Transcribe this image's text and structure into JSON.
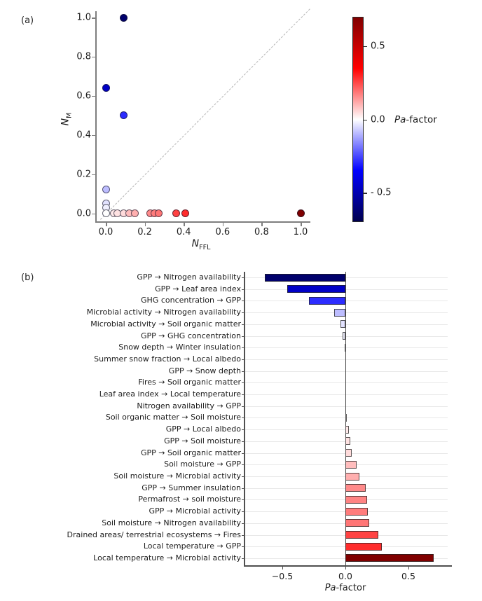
{
  "panel_a": {
    "label": "(a)",
    "ylabel": {
      "main": "N",
      "sub": "M"
    },
    "xlabel": {
      "main": "N",
      "sub": "FFL"
    },
    "x_ticks": [
      {
        "label": "0.0",
        "value": 0.0
      },
      {
        "label": "0.2",
        "value": 0.2
      },
      {
        "label": "0.4",
        "value": 0.4
      },
      {
        "label": "0.6",
        "value": 0.6
      },
      {
        "label": "0.8",
        "value": 0.8
      },
      {
        "label": "1.0",
        "value": 1.0
      }
    ],
    "y_ticks": [
      {
        "label": "0.0",
        "value": 0.0
      },
      {
        "label": "0.2",
        "value": 0.2
      },
      {
        "label": "0.4",
        "value": 0.4
      },
      {
        "label": "0.6",
        "value": 0.6
      },
      {
        "label": "0.8",
        "value": 0.8
      },
      {
        "label": "1.0",
        "value": 1.0
      }
    ]
  },
  "colorbar": {
    "label_italic": "Pa",
    "label_rest": "-factor",
    "vmin": -0.7,
    "vmax": 0.7,
    "ticks": [
      {
        "label": "0.5",
        "value": 0.5
      },
      {
        "label": "0.0",
        "value": 0.0
      },
      {
        "label": "- 0.5",
        "value": -0.5
      }
    ]
  },
  "panel_b": {
    "label": "(b)",
    "xlabel_italic": "Pa",
    "xlabel_rest": "-factor",
    "x_ticks": [
      {
        "label": "−0.5",
        "value": -0.5
      },
      {
        "label": "0.0",
        "value": 0.0
      },
      {
        "label": "0.5",
        "value": 0.5
      }
    ]
  },
  "colormap": {
    "name": "seismic",
    "vmin": -0.7,
    "vmax": 0.7,
    "stops": [
      "#00004d",
      "#0000ff",
      "#ffffff",
      "#ff0000",
      "#800000"
    ]
  },
  "chart_data": [
    {
      "type": "scatter",
      "xlabel": "N_FFL",
      "ylabel": "N_M",
      "xlim": [
        0,
        1
      ],
      "ylim": [
        0,
        1
      ],
      "color_variable": "Pa-factor",
      "colormap": "seismic",
      "identity_line": true,
      "points": [
        {
          "x": 0.09,
          "y": 1.0,
          "pa": -0.64
        },
        {
          "x": 0.0,
          "y": 0.64,
          "pa": -0.46
        },
        {
          "x": 0.09,
          "y": 0.5,
          "pa": -0.29
        },
        {
          "x": 0.0,
          "y": 0.12,
          "pa": -0.09
        },
        {
          "x": 0.0,
          "y": 0.05,
          "pa": -0.04
        },
        {
          "x": 0.0,
          "y": 0.03,
          "pa": -0.02
        },
        {
          "x": 0.0,
          "y": 0.0,
          "pa": 0.0
        },
        {
          "x": 0.04,
          "y": 0.0,
          "pa": 0.03
        },
        {
          "x": 0.06,
          "y": 0.0,
          "pa": 0.04
        },
        {
          "x": 0.09,
          "y": 0.0,
          "pa": 0.05
        },
        {
          "x": 0.12,
          "y": 0.0,
          "pa": 0.09
        },
        {
          "x": 0.15,
          "y": 0.0,
          "pa": 0.11
        },
        {
          "x": 0.23,
          "y": 0.0,
          "pa": 0.16
        },
        {
          "x": 0.25,
          "y": 0.0,
          "pa": 0.18
        },
        {
          "x": 0.27,
          "y": 0.0,
          "pa": 0.19
        },
        {
          "x": 0.36,
          "y": 0.0,
          "pa": 0.26
        },
        {
          "x": 0.41,
          "y": 0.0,
          "pa": 0.29
        },
        {
          "x": 1.0,
          "y": 0.0,
          "pa": 0.7
        }
      ]
    },
    {
      "type": "bar",
      "orientation": "horizontal",
      "xlabel": "Pa-factor",
      "xlim": [
        -0.75,
        0.8
      ],
      "categories": [
        "GPP → Nitrogen availability",
        "GPP → Leaf area index",
        "GHG concentration → GPP",
        "Microbial activity → Nitrogen availability",
        "Microbial activity → Soil organic matter",
        "GPP → GHG concentration",
        "Snow depth → Winter insulation",
        "Summer snow fraction → Local albedo",
        "GPP → Snow depth",
        "Fires → Soil organic matter",
        "Leaf area index → Local temperature",
        "Nitrogen availability → GPP",
        "Soil organic matter → Soil moisture",
        "GPP → Local albedo",
        "GPP → Soil moisture",
        "GPP → Soil organic matter",
        "Soil moisture → GPP",
        "Soil moisture → Microbial activity",
        "GPP → Summer insulation",
        "Permafrost → soil moisture",
        "GPP → Microbial activity",
        "Soil moisture → Nitrogen availability",
        "Drained areas/ terrestrial ecosystems → Fires",
        "Local temperature → GPP",
        "Local temperature → Microbial activity"
      ],
      "values": [
        -0.64,
        -0.46,
        -0.29,
        -0.09,
        -0.04,
        -0.02,
        -0.005,
        0,
        0,
        0,
        0,
        0,
        0.005,
        0.03,
        0.04,
        0.05,
        0.09,
        0.11,
        0.16,
        0.17,
        0.18,
        0.19,
        0.26,
        0.29,
        0.7
      ]
    }
  ]
}
